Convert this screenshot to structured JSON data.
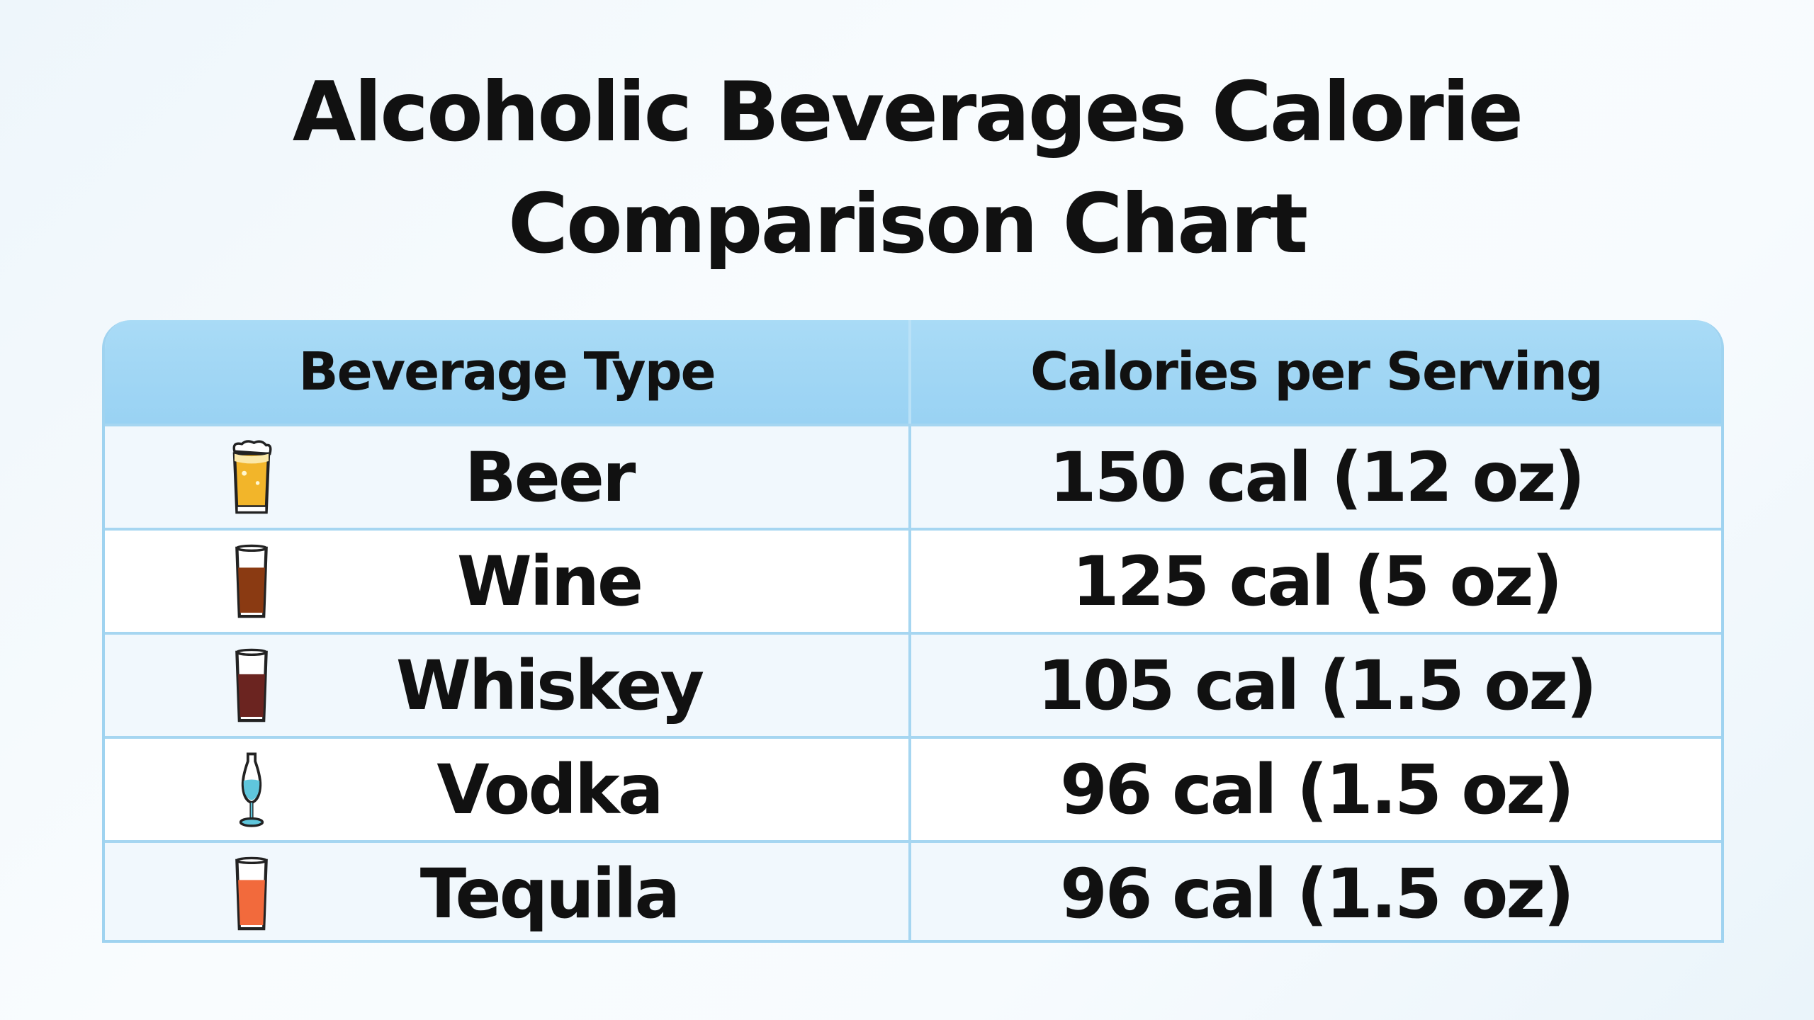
{
  "title_line1": "Alcoholic Beverages Calorie",
  "title_line2": "Comparison Chart",
  "chart_data": {
    "type": "table",
    "title": "Alcoholic Beverages Calorie Comparison Chart",
    "columns": [
      "Beverage Type",
      "Calories per Serving"
    ],
    "rows": [
      {
        "beverage": "Beer",
        "calories": "150 cal (12 oz)",
        "icon": "beer-glass-icon",
        "color": "#f2b52a"
      },
      {
        "beverage": "Wine",
        "calories": "125 cal (5 oz)",
        "icon": "wine-glass-icon",
        "color": "#8a3a12"
      },
      {
        "beverage": "Whiskey",
        "calories": "105 cal (1.5 oz)",
        "icon": "whiskey-glass-icon",
        "color": "#6b2420"
      },
      {
        "beverage": "Vodka",
        "calories": "96 cal  (1.5 oz)",
        "icon": "vodka-glass-icon",
        "color": "#5fc6dc"
      },
      {
        "beverage": "Tequila",
        "calories": "96 cal  (1.5 oz)",
        "icon": "tequila-glass-icon",
        "color": "#f26a3c"
      }
    ]
  },
  "colors": {
    "header": "#a9dbf6",
    "border": "#a6d6f1"
  }
}
